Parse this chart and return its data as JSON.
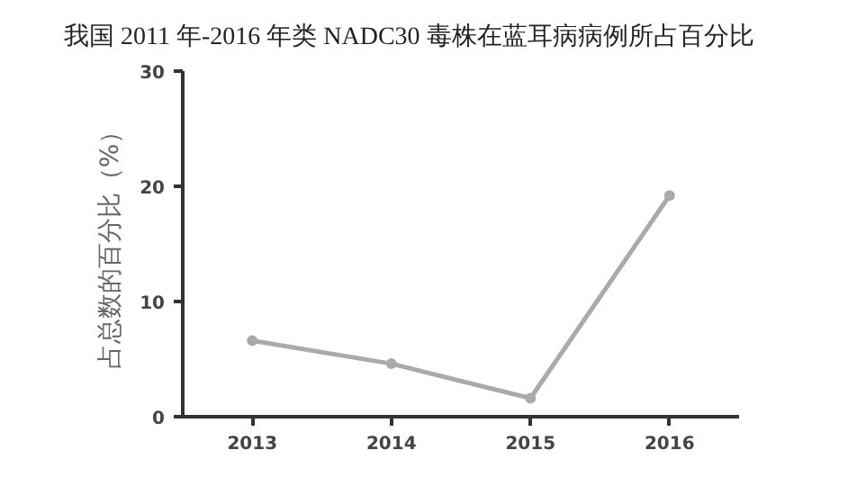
{
  "chart_data": {
    "type": "line",
    "title": "我国 2011 年-2016 年类 NADC30 毒株在蓝耳病病例所占百分比",
    "ylabel": "占总数的百分比（%）",
    "categories": [
      "2013",
      "2014",
      "2015",
      "2016"
    ],
    "series": [
      {
        "color": "#aaaaaa",
        "values": [
          6.6,
          4.6,
          1.6,
          19.2
        ]
      }
    ],
    "ylim": [
      0,
      30
    ],
    "yticks": [
      0,
      10,
      20,
      30
    ],
    "grid": false,
    "marker": "circle",
    "line_style": "solid"
  }
}
